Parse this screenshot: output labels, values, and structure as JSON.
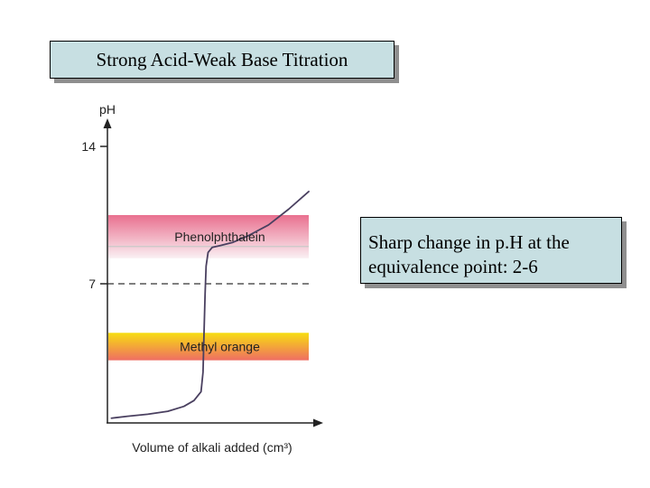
{
  "slide": {
    "title": "Strong Acid-Weak Base Titration",
    "note": "Sharp change in p.H at the equivalence point: 2-6"
  },
  "chart_data": {
    "type": "line",
    "title": "",
    "xlabel": "Volume of alkali added (cm³)",
    "ylabel": "pH",
    "ylim": [
      0,
      14
    ],
    "y_ticks": [
      {
        "value": 7,
        "label": "7"
      },
      {
        "value": 14,
        "label": "14"
      }
    ],
    "reference_line": {
      "value": 7,
      "style": "dashed"
    },
    "indicator_bands": [
      {
        "name": "Phenolphthalein",
        "ph_min": 8.3,
        "ph_max": 10.5,
        "marker_ph": 8.9,
        "color_top": "#e9708f",
        "color_bottom": "#faf0f3"
      },
      {
        "name": "Methyl orange",
        "ph_min": 3.1,
        "ph_max": 4.5,
        "color_top": "#f7dd10",
        "color_bottom": "#ef6e63"
      }
    ],
    "series": [
      {
        "color": "#4a4060",
        "points": [
          [
            0.02,
            0.15
          ],
          [
            0.1,
            0.25
          ],
          [
            0.2,
            0.35
          ],
          [
            0.3,
            0.5
          ],
          [
            0.38,
            0.75
          ],
          [
            0.43,
            1.05
          ],
          [
            0.465,
            1.5
          ],
          [
            0.475,
            2.5
          ],
          [
            0.48,
            4.5
          ],
          [
            0.485,
            6.5
          ],
          [
            0.49,
            7.9
          ],
          [
            0.5,
            8.6
          ],
          [
            0.52,
            8.85
          ],
          [
            0.56,
            8.95
          ],
          [
            0.62,
            9.1
          ],
          [
            0.7,
            9.45
          ],
          [
            0.8,
            10.0
          ],
          [
            0.9,
            10.8
          ],
          [
            1.0,
            11.7
          ]
        ]
      }
    ]
  }
}
